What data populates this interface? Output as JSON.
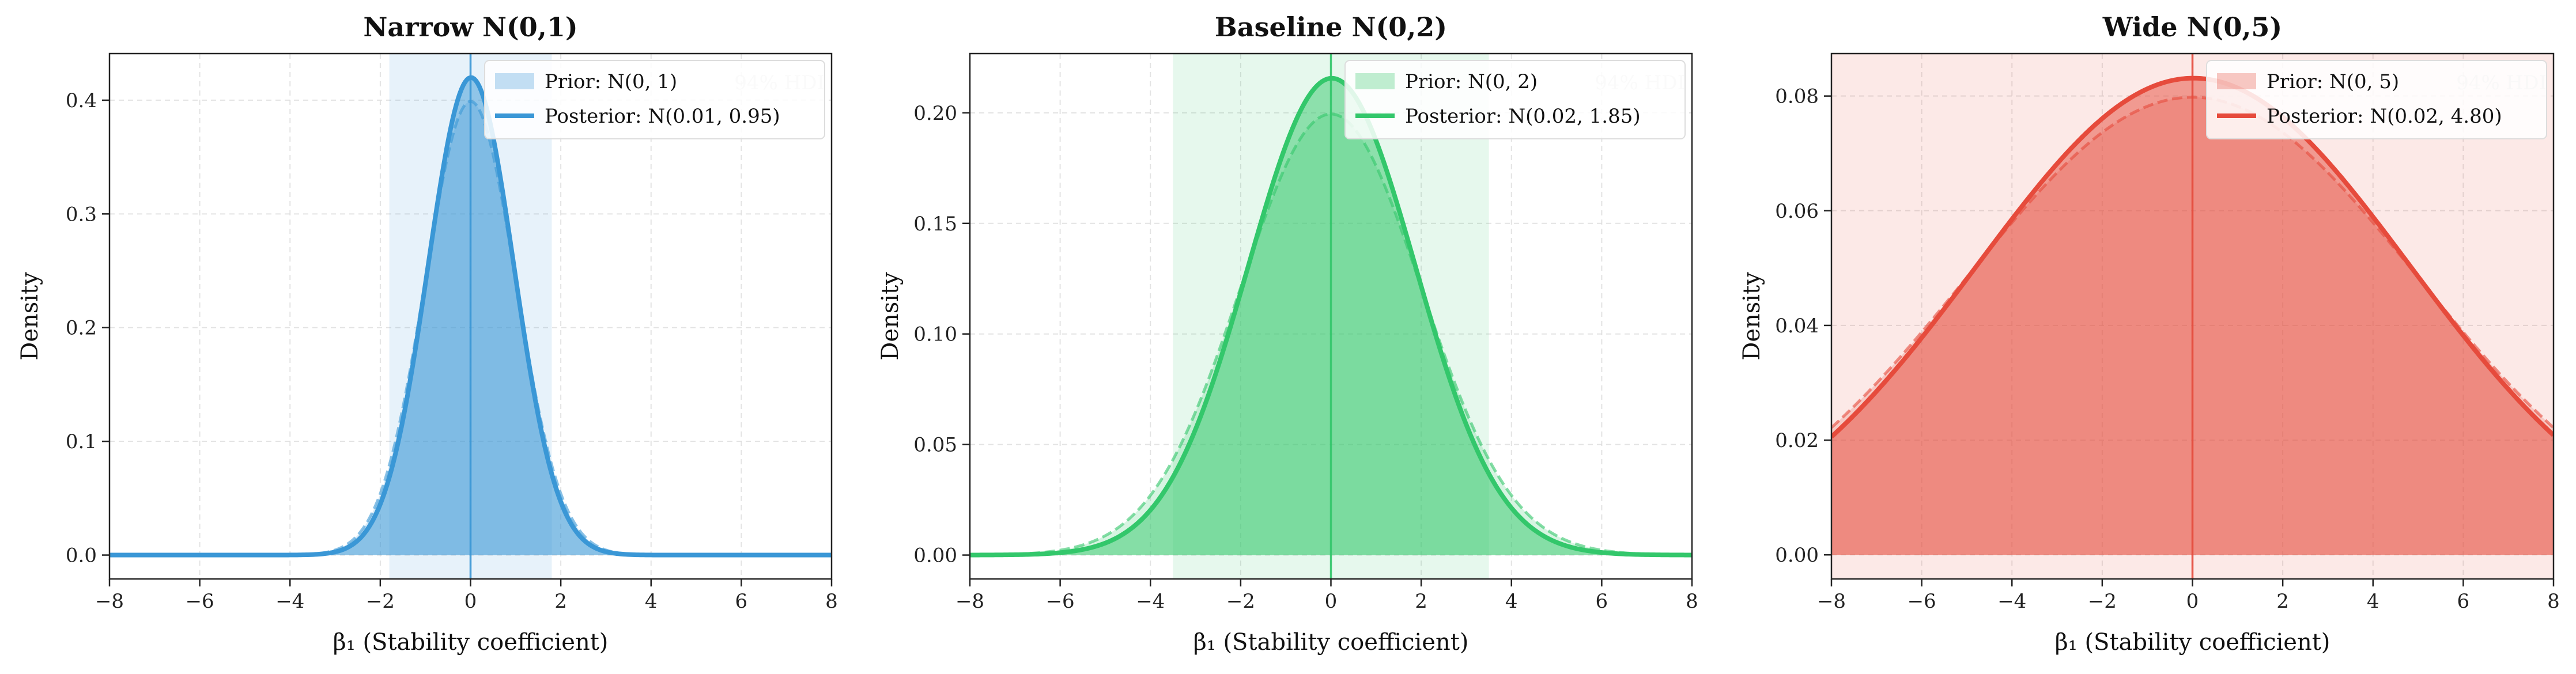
{
  "chart_data": [
    {
      "type": "area",
      "title": "Narrow N(0,1)",
      "xlabel": "β₁ (Stability coefficient)",
      "ylabel": "Density",
      "xlim": [
        -8,
        8
      ],
      "ylim": [
        -0.021,
        0.441
      ],
      "xticks": [
        -8,
        -6,
        -4,
        -2,
        0,
        2,
        4,
        6,
        8
      ],
      "xtick_labels": [
        "−8",
        "−6",
        "−4",
        "−2",
        "0",
        "2",
        "4",
        "6",
        "8"
      ],
      "yticks": [
        0.0,
        0.1,
        0.2,
        0.3,
        0.4
      ],
      "ytick_labels": [
        "0.0",
        "0.1",
        "0.2",
        "0.3",
        "0.4"
      ],
      "grid": true,
      "legend_position": "upper-right",
      "color": "#3a97d6",
      "prior": {
        "label": "Prior: N(0, 1)",
        "mean": 0,
        "sd": 1
      },
      "posterior": {
        "label": "Posterior: N(0.01, 0.95)",
        "mean": 0.01,
        "sd": 0.95
      },
      "hdi": {
        "label": "94% HDI",
        "low": -1.8,
        "high": 1.8
      },
      "vline": 0
    },
    {
      "type": "area",
      "title": "Baseline N(0,2)",
      "xlabel": "β₁ (Stability coefficient)",
      "ylabel": "Density",
      "xlim": [
        -8,
        8
      ],
      "ylim": [
        -0.0108,
        0.2268
      ],
      "xticks": [
        -8,
        -6,
        -4,
        -2,
        0,
        2,
        4,
        6,
        8
      ],
      "xtick_labels": [
        "−8",
        "−6",
        "−4",
        "−2",
        "0",
        "2",
        "4",
        "6",
        "8"
      ],
      "yticks": [
        0.0,
        0.05,
        0.1,
        0.15,
        0.2
      ],
      "ytick_labels": [
        "0.00",
        "0.05",
        "0.10",
        "0.15",
        "0.20"
      ],
      "grid": true,
      "legend_position": "upper-right",
      "color": "#33c76b",
      "prior": {
        "label": "Prior: N(0, 2)",
        "mean": 0,
        "sd": 2
      },
      "posterior": {
        "label": "Posterior: N(0.02, 1.85)",
        "mean": 0.02,
        "sd": 1.85
      },
      "hdi": {
        "label": "94% HDI",
        "low": -3.5,
        "high": 3.5
      },
      "vline": 0
    },
    {
      "type": "area",
      "title": "Wide N(0,5)",
      "xlabel": "β₁ (Stability coefficient)",
      "ylabel": "Density",
      "xlim": [
        -8,
        8
      ],
      "ylim": [
        -0.0042,
        0.0874
      ],
      "xticks": [
        -8,
        -6,
        -4,
        -2,
        0,
        2,
        4,
        6,
        8
      ],
      "xtick_labels": [
        "−8",
        "−6",
        "−4",
        "−2",
        "0",
        "2",
        "4",
        "6",
        "8"
      ],
      "yticks": [
        0.0,
        0.02,
        0.04,
        0.06,
        0.08
      ],
      "ytick_labels": [
        "0.00",
        "0.02",
        "0.04",
        "0.06",
        "0.08"
      ],
      "grid": true,
      "legend_position": "upper-right",
      "color": "#e64b3c",
      "prior": {
        "label": "Prior: N(0, 5)",
        "mean": 0,
        "sd": 5
      },
      "posterior": {
        "label": "Posterior: N(0.02, 4.80)",
        "mean": 0.02,
        "sd": 4.8
      },
      "hdi": {
        "label": "94% HDI",
        "low": -9.4,
        "high": 9.4
      },
      "vline": 0
    }
  ]
}
